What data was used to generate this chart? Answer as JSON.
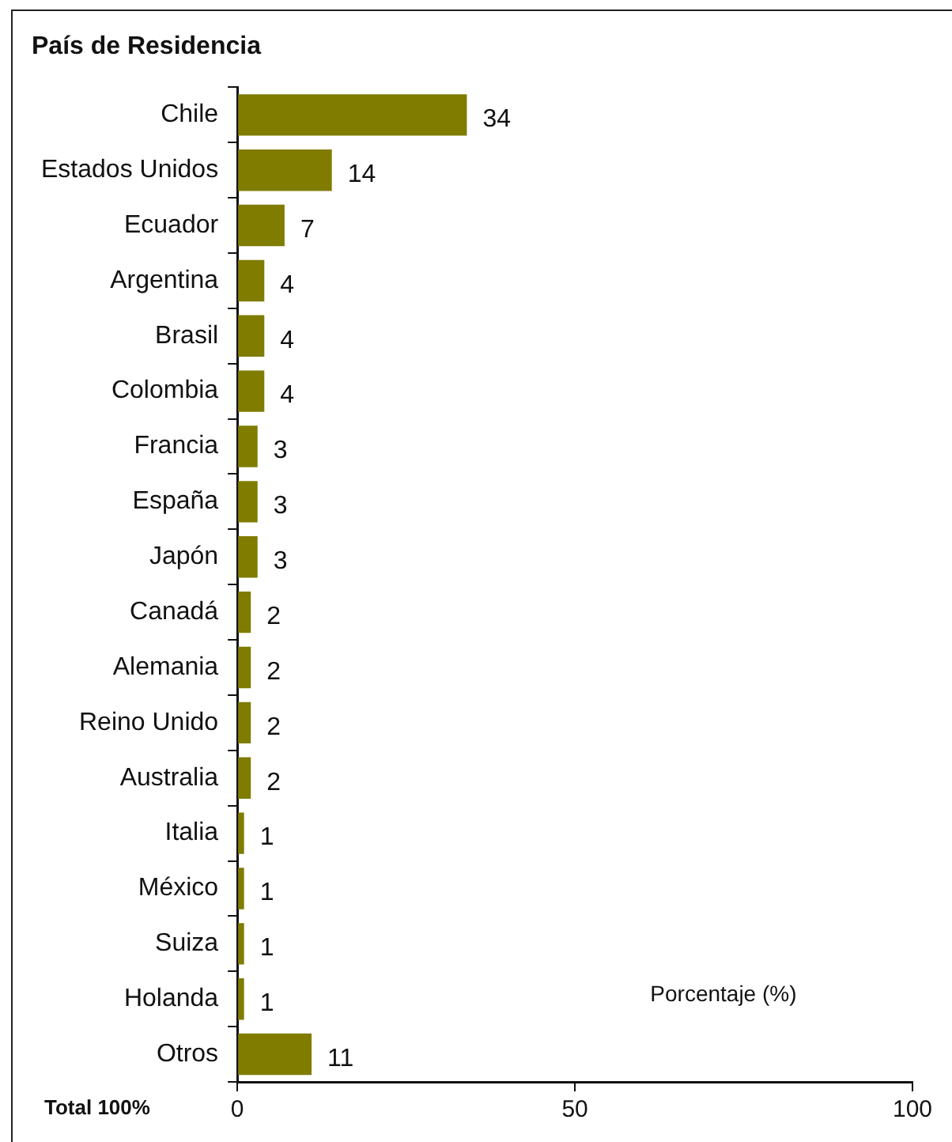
{
  "chart_data": {
    "type": "bar",
    "orientation": "horizontal",
    "title": "País de Residencia",
    "xlabel": "Porcentaje (%)",
    "categories": [
      "Chile",
      "Estados Unidos",
      "Ecuador",
      "Argentina",
      "Brasil",
      "Colombia",
      "Francia",
      "España",
      "Japón",
      "Canadá",
      "Alemania",
      "Reino Unido",
      "Australia",
      "Italia",
      "México",
      "Suiza",
      "Holanda",
      "Otros"
    ],
    "values": [
      34,
      14,
      7,
      4,
      4,
      4,
      3,
      3,
      3,
      2,
      2,
      2,
      2,
      1,
      1,
      1,
      1,
      11
    ],
    "color": "#7f7c00",
    "xlim": [
      0,
      100
    ],
    "xticks": [
      0,
      50,
      100
    ],
    "data_labels": true,
    "grid": false,
    "legend": false,
    "annotations": [
      "Total 100%"
    ]
  }
}
